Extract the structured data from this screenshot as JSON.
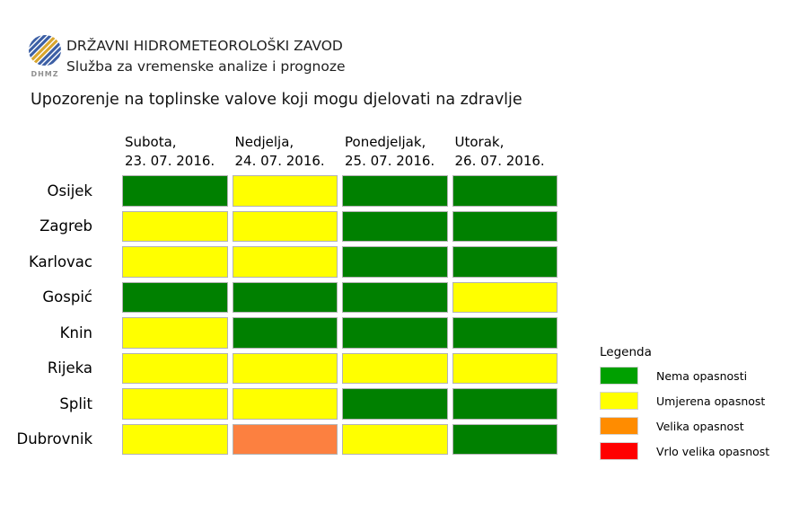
{
  "header": {
    "logo_text": "DHMZ",
    "org_name": "DRŽAVNI HIDROMETEOROLOŠKI ZAVOD",
    "org_subtitle": "Služba za vremenske analize i prognoze"
  },
  "chart_data": {
    "type": "heatmap",
    "title": "Upozorenje na toplinske valove koji mogu djelovati na zdravlje",
    "columns": [
      {
        "day": "Subota,",
        "date": "23. 07. 2016."
      },
      {
        "day": "Nedjelja,",
        "date": "24. 07. 2016."
      },
      {
        "day": "Ponedjeljak,",
        "date": "25. 07. 2016."
      },
      {
        "day": "Utorak,",
        "date": "26. 07. 2016."
      }
    ],
    "rows": [
      "Osijek",
      "Zagreb",
      "Karlovac",
      "Gospić",
      "Knin",
      "Rijeka",
      "Split",
      "Dubrovnik"
    ],
    "values": [
      [
        "none",
        "moderate",
        "none",
        "none"
      ],
      [
        "moderate",
        "moderate",
        "none",
        "none"
      ],
      [
        "moderate",
        "moderate",
        "none",
        "none"
      ],
      [
        "none",
        "none",
        "none",
        "moderate"
      ],
      [
        "moderate",
        "none",
        "none",
        "none"
      ],
      [
        "moderate",
        "moderate",
        "moderate",
        "moderate"
      ],
      [
        "moderate",
        "moderate",
        "none",
        "none"
      ],
      [
        "moderate",
        "high",
        "moderate",
        "none"
      ]
    ],
    "level_colors": {
      "none": "#008000",
      "moderate": "#ffff00",
      "high": "#fc8040",
      "very_high": "#ff0000"
    },
    "legend_position": "right"
  },
  "legend": {
    "title": "Legenda",
    "items": [
      {
        "level": "none",
        "label": "Nema opasnosti",
        "color": "#00a000"
      },
      {
        "level": "moderate",
        "label": "Umjerena opasnost",
        "color": "#ffff00"
      },
      {
        "level": "high",
        "label": "Velika opasnost",
        "color": "#ff8c00"
      },
      {
        "level": "very_high",
        "label": "Vrlo velika opasnost",
        "color": "#ff0000"
      }
    ]
  },
  "logo_colors": {
    "blue": "#3c5fa5",
    "yellow": "#d9a62e"
  }
}
